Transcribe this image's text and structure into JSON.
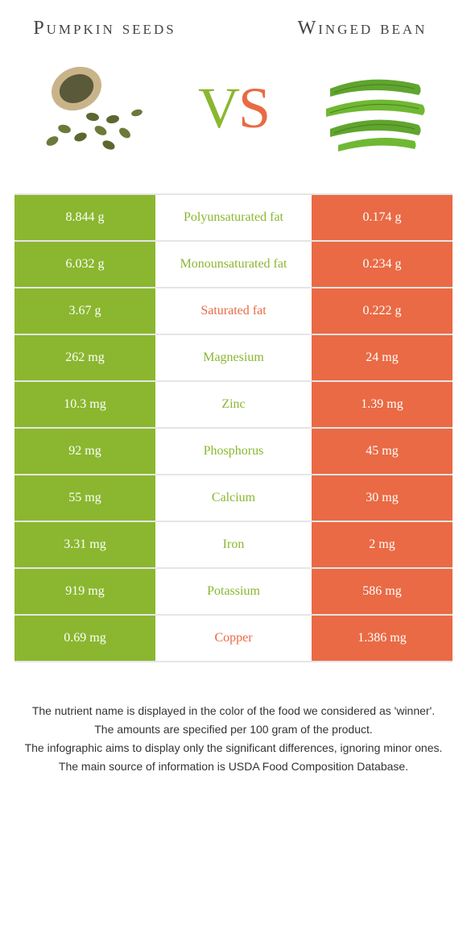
{
  "colors": {
    "left": "#8ab72f",
    "right": "#e96a44",
    "border": "#e5e5e5",
    "text": "#333333",
    "bg": "#ffffff"
  },
  "header": {
    "left_title": "Pumpkin seeds",
    "right_title": "Winged bean",
    "vs_v": "V",
    "vs_s": "S"
  },
  "rows": [
    {
      "left": "8.844 g",
      "label": "Polyunsaturated fat",
      "right": "0.174 g",
      "winner": "left"
    },
    {
      "left": "6.032 g",
      "label": "Monounsaturated fat",
      "right": "0.234 g",
      "winner": "left"
    },
    {
      "left": "3.67 g",
      "label": "Saturated fat",
      "right": "0.222 g",
      "winner": "right"
    },
    {
      "left": "262 mg",
      "label": "Magnesium",
      "right": "24 mg",
      "winner": "left"
    },
    {
      "left": "10.3 mg",
      "label": "Zinc",
      "right": "1.39 mg",
      "winner": "left"
    },
    {
      "left": "92 mg",
      "label": "Phosphorus",
      "right": "45 mg",
      "winner": "left"
    },
    {
      "left": "55 mg",
      "label": "Calcium",
      "right": "30 mg",
      "winner": "left"
    },
    {
      "left": "3.31 mg",
      "label": "Iron",
      "right": "2 mg",
      "winner": "left"
    },
    {
      "left": "919 mg",
      "label": "Potassium",
      "right": "586 mg",
      "winner": "left"
    },
    {
      "left": "0.69 mg",
      "label": "Copper",
      "right": "1.386 mg",
      "winner": "right"
    }
  ],
  "footnotes": {
    "line1": "The nutrient name is displayed in the color of the food we considered as 'winner'.",
    "line2": "The amounts are specified per 100 gram of the product.",
    "line3": "The infographic aims to display only the significant differences, ignoring minor ones.",
    "line4": "The main source of information is USDA Food Composition Database."
  }
}
